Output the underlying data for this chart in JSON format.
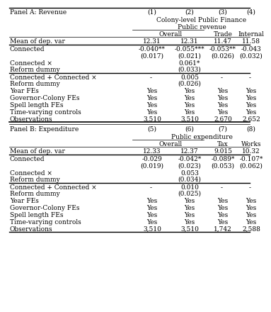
{
  "panel_a_header": "Panel A: Revenue",
  "panel_b_header": "Panel B: Expenditure",
  "col_headers_a": [
    "(1)",
    "(2)",
    "(3)",
    "(4)"
  ],
  "col_headers_b": [
    "(5)",
    "(6)",
    "(7)",
    "(8)"
  ],
  "group_header_a1": "Colony-level Public Finance",
  "group_header_a2": "Public revenue",
  "group_header_b1": "Public expenditure",
  "subgroup_a": [
    "Overall",
    "Trade",
    "Internal"
  ],
  "subgroup_b": [
    "Overall",
    "Tax",
    "Works"
  ],
  "mean_a": [
    "12.31",
    "12.31",
    "11.47",
    "11.58"
  ],
  "connected_a": [
    "-0.040**",
    "-0.055***",
    "-0.053**",
    "-0.043"
  ],
  "connected_a_se": [
    "(0.017)",
    "(0.021)",
    "(0.026)",
    "(0.032)"
  ],
  "connxref_a_val": "0.061*",
  "connxref_a_se": "(0.033)",
  "connsum_a_val": [
    "- ",
    "0.005",
    "- ",
    "- "
  ],
  "connsum_a_se": "(0.026)",
  "obs_a": [
    "3,510",
    "3,510",
    "2,670",
    "2,652"
  ],
  "mean_b": [
    "12.33",
    "12.37",
    "9.015",
    "10.32"
  ],
  "connected_b": [
    "-0.029",
    "-0.042*",
    "-0.089*",
    "-0.107*"
  ],
  "connected_b_se": [
    "(0.019)",
    "(0.023)",
    "(0.053)",
    "(0.062)"
  ],
  "connxref_b_val": "0.053",
  "connxref_b_se": "(0.034)",
  "connsum_b_val": [
    "- ",
    "0.010",
    "- ",
    "- "
  ],
  "connsum_b_se": "(0.025)",
  "obs_b": [
    "3,510",
    "3,510",
    "1,742",
    "2,588"
  ],
  "bg_color": "#ffffff",
  "text_color": "#000000"
}
